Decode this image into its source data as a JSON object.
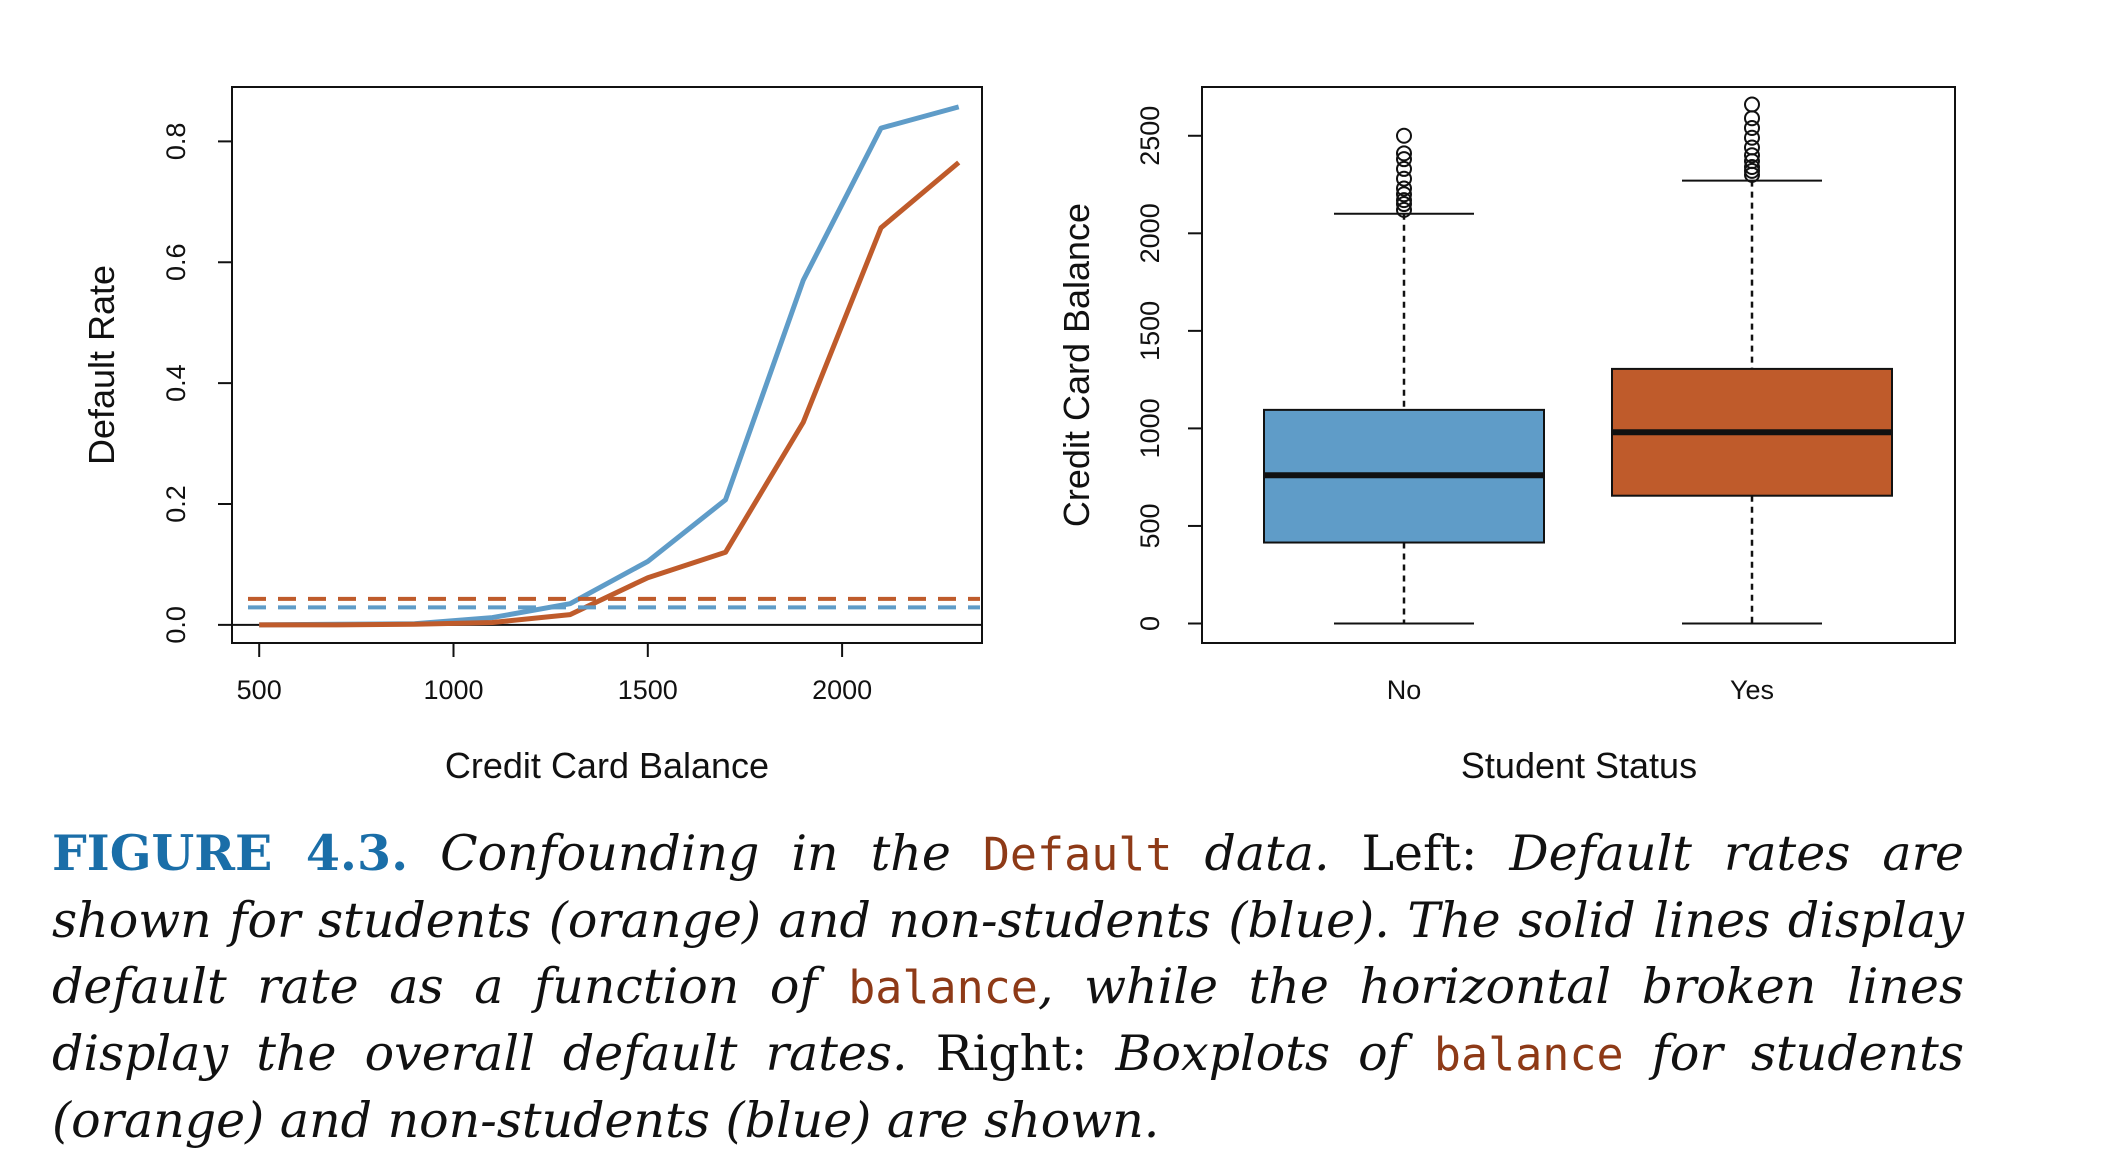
{
  "colors": {
    "student": "#bf5b2b",
    "nonstudent": "#5f9cc8",
    "axis": "#111111",
    "caption_label": "#1a6ea8",
    "code": "#8e3a17"
  },
  "chart_data": [
    {
      "type": "line",
      "xlabel": "Credit Card Balance",
      "ylabel": "Default Rate",
      "xlim": [
        430,
        2360
      ],
      "ylim": [
        -0.03,
        0.89
      ],
      "xticks": [
        500,
        1000,
        1500,
        2000
      ],
      "yticks": [
        0.0,
        0.2,
        0.4,
        0.6,
        0.8
      ],
      "xtick_labels": [
        "500",
        "1000",
        "1500",
        "2000"
      ],
      "ytick_labels": [
        "0.0",
        "0.2",
        "0.4",
        "0.6",
        "0.8"
      ],
      "series": [
        {
          "color": "#5f9cc8",
          "style": "solid",
          "x": [
            500,
            700,
            900,
            1100,
            1300,
            1500,
            1700,
            1900,
            2100,
            2300
          ],
          "y": [
            0.0,
            0.001,
            0.002,
            0.012,
            0.035,
            0.105,
            0.207,
            0.57,
            0.822,
            0.857
          ]
        },
        {
          "color": "#bf5b2b",
          "style": "solid",
          "x": [
            500,
            700,
            900,
            1100,
            1300,
            1500,
            1700,
            1900,
            2100,
            2300
          ],
          "y": [
            0.0,
            0.0,
            0.001,
            0.004,
            0.017,
            0.078,
            0.12,
            0.335,
            0.657,
            0.765
          ]
        },
        {
          "color": "#bf5b2b",
          "style": "dashed",
          "y_const": 0.043
        },
        {
          "color": "#5f9cc8",
          "style": "dashed",
          "y_const": 0.029
        }
      ],
      "reference_line": {
        "y": 0.0,
        "color": "#111111"
      }
    },
    {
      "type": "boxplot",
      "xlabel": "Student Status",
      "ylabel": "Credit Card Balance",
      "ylim": [
        -100,
        2750
      ],
      "yticks": [
        0,
        500,
        1000,
        1500,
        2000,
        2500
      ],
      "ytick_labels": [
        "0",
        "500",
        "1000",
        "1500",
        "2000",
        "2500"
      ],
      "categories": [
        "No",
        "Yes"
      ],
      "boxes": [
        {
          "category": "No",
          "color": "#5f9cc8",
          "whisker_low": 0,
          "q1": 415,
          "median": 760,
          "q3": 1095,
          "whisker_high": 2100,
          "outliers": [
            2120,
            2150,
            2170,
            2200,
            2230,
            2280,
            2330,
            2380,
            2410,
            2500
          ]
        },
        {
          "category": "Yes",
          "color": "#bf5b2b",
          "whisker_low": 0,
          "q1": 655,
          "median": 980,
          "q3": 1305,
          "whisker_high": 2270,
          "outliers": [
            2300,
            2320,
            2340,
            2370,
            2400,
            2440,
            2490,
            2540,
            2590,
            2660
          ]
        }
      ]
    }
  ],
  "caption": {
    "label": "FIGURE 4.3.",
    "p1": " Confounding in the ",
    "code1": "Default",
    "p2": " data.",
    "p3": " Left: ",
    "p4": "Default rates are shown for students (orange) and non-students (blue). The solid lines display default rate as a function of ",
    "code2": "balance",
    "p5": ", while the horizontal broken lines display the overall default rates.",
    "p6": " Right: ",
    "p7": "Boxplots of ",
    "code3": "balance",
    "p8": " for students (orange) and non-students (blue) are shown."
  }
}
